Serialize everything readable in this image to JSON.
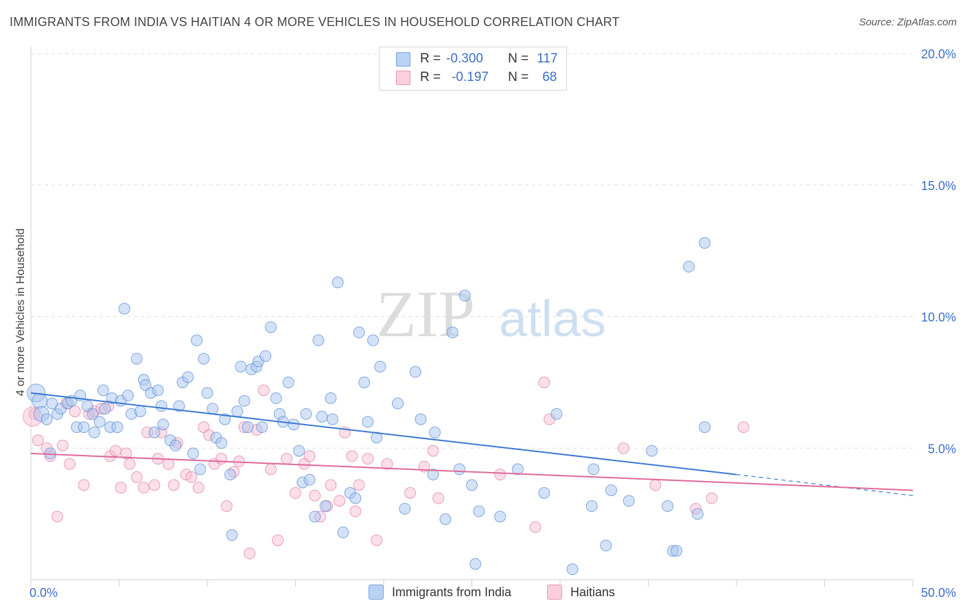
{
  "title": "IMMIGRANTS FROM INDIA VS HAITIAN 4 OR MORE VEHICLES IN HOUSEHOLD CORRELATION CHART",
  "source": "Source: ZipAtlas.com",
  "watermark": {
    "zip": "ZIP",
    "atlas": "atlas"
  },
  "legend": {
    "rows": [
      {
        "r_label": "R =",
        "r_value": "-0.300",
        "n_label": "N =",
        "n_value": "117",
        "color": "#a9c6ef"
      },
      {
        "r_label": "R =",
        "r_value": "-0.197",
        "n_label": "N =",
        "n_value": "68",
        "color": "#f6b9ce"
      }
    ]
  },
  "bottom_legend": [
    "Immigrants from India",
    "Haitians"
  ],
  "chart_data": {
    "type": "scatter",
    "title": "IMMIGRANTS FROM INDIA VS HAITIAN 4 OR MORE VEHICLES IN HOUSEHOLD CORRELATION CHART",
    "xlabel": "",
    "ylabel": "4 or more Vehicles in Household",
    "xlim": [
      0,
      50
    ],
    "ylim": [
      0,
      20
    ],
    "x_tick_labels": [
      "0.0%",
      "50.0%"
    ],
    "y_tick_values": [
      5,
      10,
      15,
      20
    ],
    "y_tick_labels": [
      "5.0%",
      "10.0%",
      "15.0%",
      "20.0%"
    ],
    "grid": "horizontal dashed",
    "legend_placement": "top-center",
    "series": [
      {
        "name": "Immigrants from India",
        "color": "#5b8fd6",
        "fill": "#a9c6ef",
        "trend": {
          "x0": 0,
          "y0": 7.1,
          "x1": 40,
          "y1": 4.0,
          "dashed_to_x": 50,
          "dashed_to_y": 3.2
        },
        "points": [
          [
            0.3,
            7.1
          ],
          [
            0.5,
            6.8
          ],
          [
            0.6,
            6.3
          ],
          [
            0.9,
            6.1
          ],
          [
            1.1,
            4.8
          ],
          [
            1.2,
            6.7
          ],
          [
            1.5,
            6.3
          ],
          [
            1.7,
            6.5
          ],
          [
            2.1,
            6.7
          ],
          [
            2.3,
            6.8
          ],
          [
            2.6,
            5.8
          ],
          [
            2.8,
            7.0
          ],
          [
            3.0,
            5.8
          ],
          [
            3.2,
            6.6
          ],
          [
            3.5,
            6.3
          ],
          [
            3.6,
            5.6
          ],
          [
            3.9,
            6.0
          ],
          [
            4.1,
            7.2
          ],
          [
            4.2,
            6.5
          ],
          [
            4.5,
            5.8
          ],
          [
            4.6,
            6.9
          ],
          [
            4.9,
            5.8
          ],
          [
            5.1,
            6.8
          ],
          [
            5.3,
            10.3
          ],
          [
            5.5,
            7.0
          ],
          [
            5.7,
            6.3
          ],
          [
            6.0,
            8.4
          ],
          [
            6.2,
            6.4
          ],
          [
            6.4,
            7.6
          ],
          [
            6.5,
            7.4
          ],
          [
            6.8,
            7.1
          ],
          [
            7.0,
            5.6
          ],
          [
            7.2,
            7.2
          ],
          [
            7.4,
            6.6
          ],
          [
            7.5,
            5.9
          ],
          [
            7.9,
            5.3
          ],
          [
            8.2,
            5.1
          ],
          [
            8.4,
            6.6
          ],
          [
            8.6,
            7.5
          ],
          [
            8.9,
            7.7
          ],
          [
            9.2,
            4.8
          ],
          [
            9.4,
            9.1
          ],
          [
            9.6,
            4.2
          ],
          [
            9.8,
            8.4
          ],
          [
            10.0,
            7.1
          ],
          [
            10.3,
            6.5
          ],
          [
            10.5,
            5.4
          ],
          [
            10.8,
            5.2
          ],
          [
            11.0,
            6.1
          ],
          [
            11.3,
            4.0
          ],
          [
            11.4,
            1.7
          ],
          [
            11.7,
            6.4
          ],
          [
            11.9,
            8.1
          ],
          [
            12.1,
            6.8
          ],
          [
            12.3,
            5.8
          ],
          [
            12.5,
            8.0
          ],
          [
            12.8,
            8.1
          ],
          [
            12.9,
            8.3
          ],
          [
            13.1,
            5.8
          ],
          [
            13.3,
            8.5
          ],
          [
            13.6,
            9.6
          ],
          [
            13.9,
            6.9
          ],
          [
            14.1,
            6.3
          ],
          [
            14.3,
            6.0
          ],
          [
            14.6,
            7.5
          ],
          [
            14.9,
            5.9
          ],
          [
            15.2,
            4.9
          ],
          [
            15.4,
            3.7
          ],
          [
            15.6,
            6.3
          ],
          [
            15.8,
            3.8
          ],
          [
            16.1,
            2.4
          ],
          [
            16.3,
            9.1
          ],
          [
            16.5,
            6.2
          ],
          [
            16.7,
            2.8
          ],
          [
            17.1,
            6.1
          ],
          [
            17.0,
            6.9
          ],
          [
            17.4,
            11.3
          ],
          [
            17.7,
            1.8
          ],
          [
            18.1,
            3.3
          ],
          [
            18.4,
            3.1
          ],
          [
            18.6,
            9.4
          ],
          [
            18.9,
            7.5
          ],
          [
            19.1,
            6.0
          ],
          [
            19.4,
            9.1
          ],
          [
            19.6,
            5.4
          ],
          [
            19.8,
            8.1
          ],
          [
            20.8,
            6.7
          ],
          [
            21.2,
            2.7
          ],
          [
            21.8,
            7.9
          ],
          [
            22.1,
            6.1
          ],
          [
            22.8,
            4.0
          ],
          [
            22.9,
            5.6
          ],
          [
            23.5,
            2.3
          ],
          [
            23.9,
            9.4
          ],
          [
            24.3,
            4.2
          ],
          [
            24.6,
            10.8
          ],
          [
            25.0,
            3.6
          ],
          [
            25.2,
            0.6
          ],
          [
            25.4,
            2.6
          ],
          [
            26.6,
            2.4
          ],
          [
            27.6,
            4.2
          ],
          [
            29.1,
            3.3
          ],
          [
            29.8,
            6.3
          ],
          [
            30.7,
            0.4
          ],
          [
            31.8,
            2.8
          ],
          [
            31.9,
            4.2
          ],
          [
            32.6,
            1.3
          ],
          [
            32.9,
            3.4
          ],
          [
            33.9,
            3.0
          ],
          [
            35.2,
            4.9
          ],
          [
            36.1,
            2.8
          ],
          [
            36.4,
            1.1
          ],
          [
            36.6,
            1.1
          ],
          [
            37.3,
            11.9
          ],
          [
            37.8,
            2.5
          ],
          [
            38.2,
            5.8
          ],
          [
            38.2,
            12.8
          ]
        ]
      },
      {
        "name": "Haitians",
        "color": "#e07aa0",
        "fill": "#f6b9ce",
        "trend": {
          "x0": 0,
          "y0": 4.8,
          "x1": 50,
          "y1": 3.4
        },
        "points": [
          [
            0.2,
            6.3
          ],
          [
            0.4,
            5.3
          ],
          [
            0.9,
            5.0
          ],
          [
            1.1,
            4.7
          ],
          [
            1.5,
            2.4
          ],
          [
            1.8,
            5.1
          ],
          [
            2.0,
            6.7
          ],
          [
            2.2,
            4.4
          ],
          [
            2.5,
            6.4
          ],
          [
            3.0,
            3.6
          ],
          [
            3.3,
            6.3
          ],
          [
            3.6,
            6.4
          ],
          [
            4.0,
            6.5
          ],
          [
            4.4,
            6.6
          ],
          [
            4.5,
            4.7
          ],
          [
            4.8,
            4.9
          ],
          [
            5.1,
            3.5
          ],
          [
            5.4,
            4.8
          ],
          [
            5.6,
            4.4
          ],
          [
            6.0,
            3.9
          ],
          [
            6.4,
            3.5
          ],
          [
            6.6,
            5.6
          ],
          [
            7.0,
            3.6
          ],
          [
            7.2,
            4.6
          ],
          [
            7.4,
            5.6
          ],
          [
            7.8,
            4.4
          ],
          [
            8.1,
            3.6
          ],
          [
            8.3,
            5.2
          ],
          [
            8.8,
            4.0
          ],
          [
            9.1,
            3.9
          ],
          [
            9.5,
            3.5
          ],
          [
            9.8,
            5.8
          ],
          [
            10.1,
            5.5
          ],
          [
            10.4,
            4.4
          ],
          [
            10.8,
            4.6
          ],
          [
            11.1,
            2.8
          ],
          [
            11.5,
            4.1
          ],
          [
            11.8,
            4.5
          ],
          [
            12.1,
            5.8
          ],
          [
            12.4,
            1.0
          ],
          [
            12.8,
            5.7
          ],
          [
            13.2,
            7.2
          ],
          [
            13.6,
            4.2
          ],
          [
            14.0,
            1.5
          ],
          [
            14.5,
            4.6
          ],
          [
            15.0,
            3.3
          ],
          [
            15.5,
            4.4
          ],
          [
            15.8,
            4.7
          ],
          [
            16.1,
            3.2
          ],
          [
            16.4,
            2.4
          ],
          [
            16.8,
            2.8
          ],
          [
            17.0,
            3.6
          ],
          [
            17.5,
            3.0
          ],
          [
            17.8,
            5.6
          ],
          [
            18.2,
            4.7
          ],
          [
            18.4,
            2.6
          ],
          [
            18.6,
            3.6
          ],
          [
            19.1,
            4.6
          ],
          [
            19.6,
            1.5
          ],
          [
            20.2,
            4.4
          ],
          [
            21.5,
            3.3
          ],
          [
            22.3,
            4.3
          ],
          [
            22.8,
            4.9
          ],
          [
            23.1,
            3.1
          ],
          [
            26.6,
            4.0
          ],
          [
            28.6,
            2.0
          ],
          [
            29.1,
            7.5
          ],
          [
            29.4,
            6.1
          ]
        ],
        "extra_points": [
          [
            33.6,
            5.0
          ],
          [
            35.4,
            3.6
          ],
          [
            37.7,
            2.7
          ],
          [
            38.6,
            3.1
          ],
          [
            40.4,
            5.8
          ]
        ]
      }
    ]
  }
}
